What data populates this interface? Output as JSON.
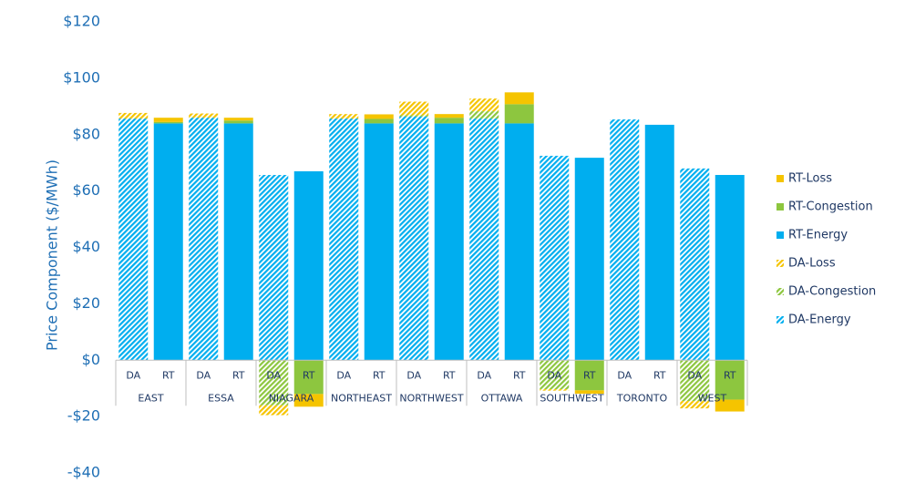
{
  "chart_data": {
    "type": "stacked-bar",
    "y_label": "Price Component ($/MWh)",
    "groups": [
      "EAST",
      "ESSA",
      "NIAGARA",
      "NORTHEAST",
      "NORTHWEST",
      "OTTAWA",
      "SOUTHWEST",
      "TORONTO",
      "WEST"
    ],
    "categories": [
      "DA",
      "RT",
      "DA",
      "RT",
      "DA",
      "RT",
      "DA",
      "RT",
      "DA",
      "RT",
      "DA",
      "RT",
      "DA",
      "RT",
      "DA",
      "RT",
      "DA",
      "RT"
    ],
    "ylim": [
      -40,
      120
    ],
    "yticks": [
      {
        "value": -40,
        "label": "-$40"
      },
      {
        "value": -20,
        "label": "-$20"
      },
      {
        "value": 0,
        "label": "$0"
      },
      {
        "value": 20,
        "label": "$20"
      },
      {
        "value": 40,
        "label": "$40"
      },
      {
        "value": 60,
        "label": "$60"
      },
      {
        "value": 80,
        "label": "$80"
      },
      {
        "value": 100,
        "label": "$100"
      },
      {
        "value": 120,
        "label": "$120"
      }
    ],
    "grid": false,
    "series": [
      {
        "name": "DA-Energy",
        "color": "#00aeef",
        "hatch": true,
        "values": [
          85.7,
          null,
          86,
          null,
          65.7,
          null,
          85.7,
          null,
          86.4,
          null,
          85.7,
          null,
          72.5,
          null,
          85.4,
          null,
          68,
          null
        ]
      },
      {
        "name": "DA-Congestion",
        "color": "#8dc63f",
        "hatch": true,
        "values": [
          0,
          null,
          0,
          null,
          -16,
          null,
          0,
          null,
          0.5,
          null,
          2.6,
          null,
          -10.3,
          null,
          0,
          null,
          -14.5,
          null
        ]
      },
      {
        "name": "DA-Loss",
        "color": "#f5c400",
        "hatch": true,
        "values": [
          2,
          null,
          1.5,
          null,
          -3.5,
          null,
          1.6,
          null,
          4.8,
          null,
          4.5,
          null,
          -0.5,
          null,
          0,
          null,
          -2.6,
          null
        ]
      },
      {
        "name": "RT-Energy",
        "color": "#00aeef",
        "hatch": false,
        "values": [
          null,
          84,
          null,
          84,
          null,
          67,
          null,
          84,
          null,
          84,
          null,
          84,
          null,
          71.8,
          null,
          83.5,
          null,
          65.7
        ]
      },
      {
        "name": "RT-Congestion",
        "color": "#8dc63f",
        "hatch": false,
        "values": [
          null,
          0.5,
          null,
          1,
          null,
          -12,
          null,
          1.6,
          null,
          2,
          null,
          6.8,
          null,
          -10.7,
          null,
          0,
          null,
          -14
        ]
      },
      {
        "name": "RT-Loss",
        "color": "#f5c400",
        "hatch": false,
        "values": [
          null,
          1.5,
          null,
          1,
          null,
          -4.5,
          null,
          1.6,
          null,
          1.3,
          null,
          4.2,
          null,
          -1.2,
          null,
          0,
          null,
          -4.2
        ]
      }
    ]
  }
}
